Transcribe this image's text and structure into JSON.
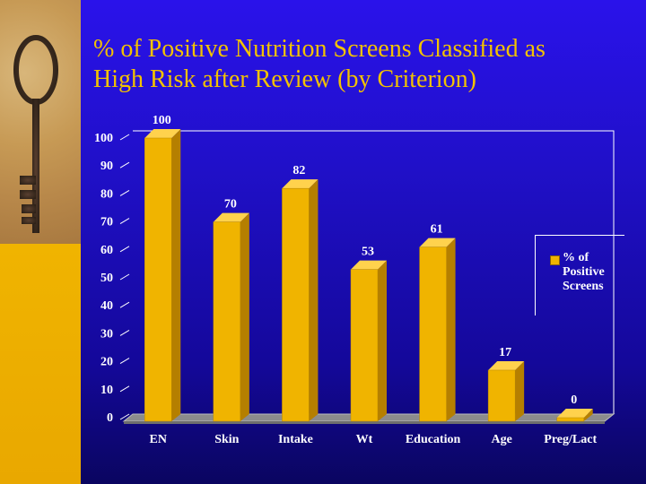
{
  "title_lines": [
    "% of Positive Nutrition Screens Classified as",
    "High Risk after Review (by Criterion)"
  ],
  "colors": {
    "bar_front": "#f0b400",
    "bar_side": "#b57f00",
    "bar_top": "#ffd24d",
    "title": "#f2c200",
    "background": "#1e10cc"
  },
  "chart_data": {
    "type": "bar",
    "title": "% of Positive Nutrition Screens Classified as High Risk after Review (by Criterion)",
    "categories": [
      "EN",
      "Skin",
      "Intake",
      "Wt",
      "Education",
      "Age",
      "Preg/Lact"
    ],
    "series": [
      {
        "name": "% of Positive Screens",
        "values": [
          100,
          70,
          82,
          53,
          61,
          17,
          0
        ]
      }
    ],
    "data_labels": [
      "100",
      "70",
      "82",
      "53",
      "61",
      "17",
      "0"
    ],
    "ylim": [
      0,
      100
    ],
    "y_ticks": [
      "0",
      "10",
      "20",
      "30",
      "40",
      "50",
      "60",
      "70",
      "80",
      "90",
      "100"
    ],
    "xlabel": "",
    "ylabel": "",
    "grid": false,
    "legend_position": "right"
  }
}
